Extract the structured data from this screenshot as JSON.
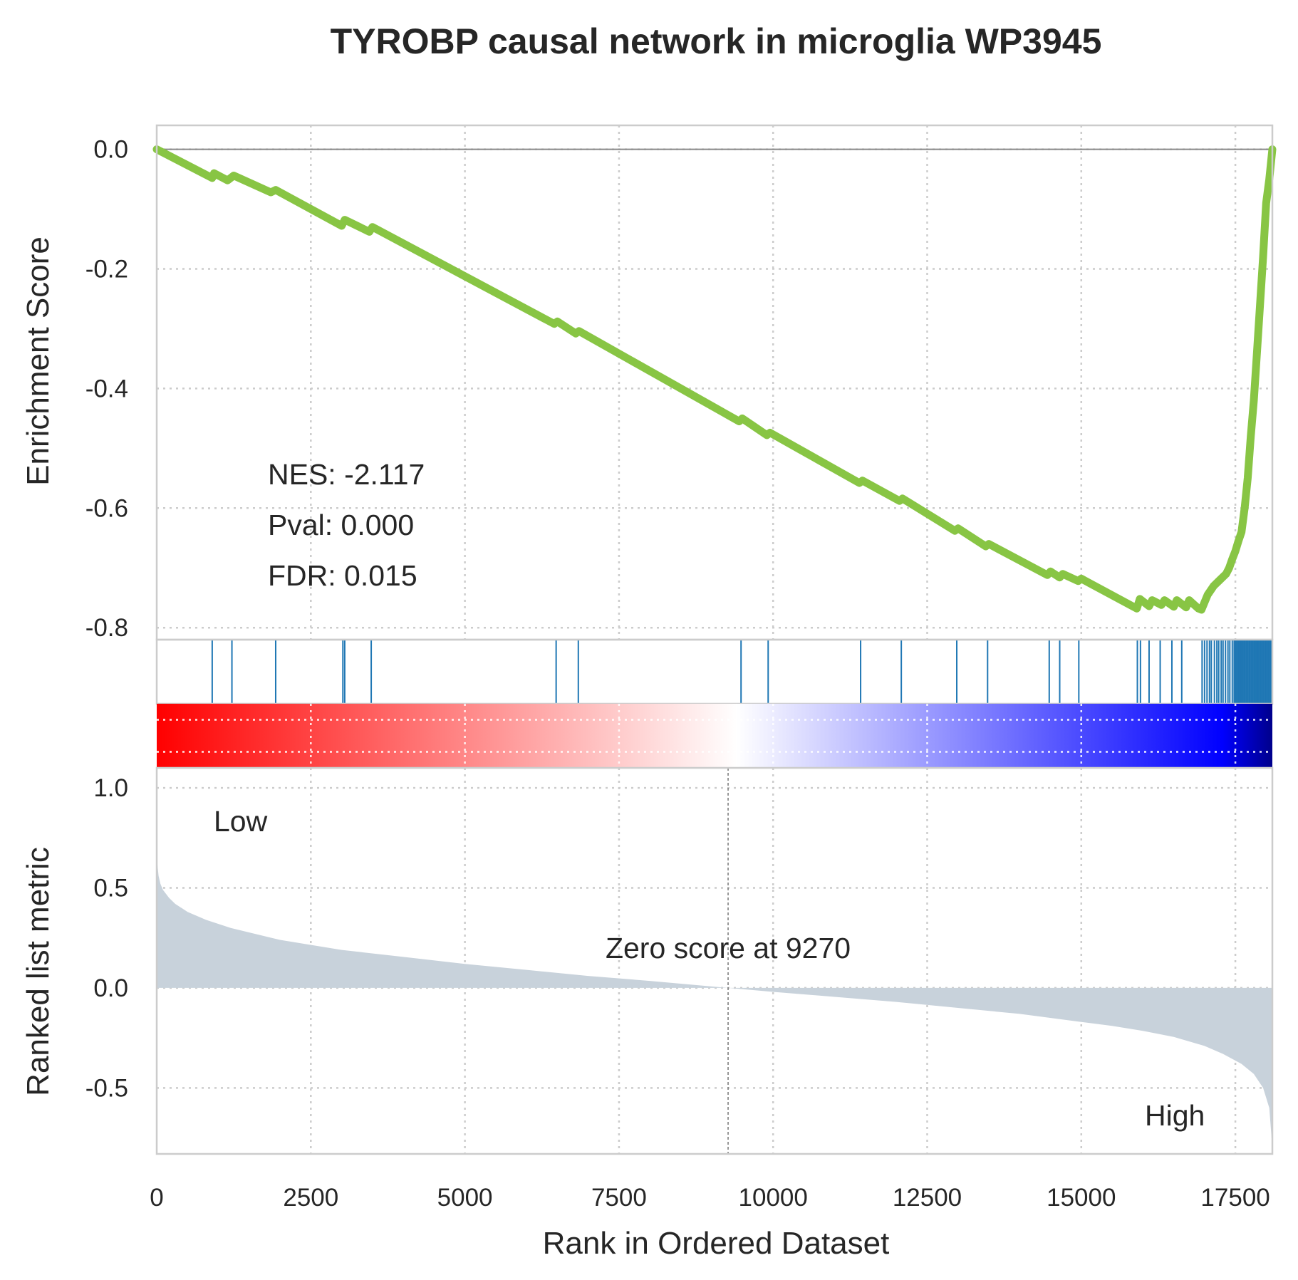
{
  "chart_data": {
    "type": "line",
    "title": "TYROBP causal network in microglia WP3945",
    "xlabel": "Rank in Ordered Dataset",
    "xlim": [
      0,
      18100
    ],
    "x_ticks": [
      0,
      2500,
      5000,
      7500,
      10000,
      12500,
      15000,
      17500
    ],
    "grid": true,
    "enrichment_panel": {
      "ylabel": "Enrichment Score",
      "ylim": [
        -0.82,
        0.04
      ],
      "y_ticks": [
        0.0,
        -0.2,
        -0.4,
        -0.6,
        -0.8
      ],
      "y_tick_labels": [
        "0.0",
        "-0.2",
        "-0.4",
        "-0.6",
        "-0.8"
      ],
      "series": [
        {
          "color": "#88c544",
          "x": [
            0,
            900,
            930,
            1150,
            1250,
            1850,
            1930,
            3000,
            3050,
            3450,
            3500,
            6450,
            6500,
            6800,
            6850,
            9450,
            9500,
            9900,
            9950,
            11400,
            11450,
            12050,
            12100,
            12950,
            13000,
            13450,
            13500,
            14450,
            14500,
            14650,
            14700,
            14950,
            15000,
            15900,
            15950,
            16100,
            16150,
            16300,
            16350,
            16500,
            16550,
            16700,
            16750,
            16900,
            16950,
            17050,
            17150,
            17250,
            17350,
            17400,
            17450,
            17500,
            17550,
            17600,
            17650,
            17700,
            17750,
            17800,
            17850,
            17900,
            17950,
            18000,
            18050,
            18100
          ],
          "y": [
            0.0,
            -0.048,
            -0.04,
            -0.052,
            -0.044,
            -0.072,
            -0.068,
            -0.128,
            -0.118,
            -0.138,
            -0.13,
            -0.292,
            -0.288,
            -0.308,
            -0.304,
            -0.455,
            -0.45,
            -0.478,
            -0.474,
            -0.558,
            -0.554,
            -0.588,
            -0.584,
            -0.638,
            -0.634,
            -0.664,
            -0.66,
            -0.712,
            -0.706,
            -0.716,
            -0.71,
            -0.722,
            -0.718,
            -0.768,
            -0.752,
            -0.764,
            -0.754,
            -0.762,
            -0.754,
            -0.765,
            -0.754,
            -0.766,
            -0.754,
            -0.768,
            -0.77,
            -0.745,
            -0.73,
            -0.72,
            -0.71,
            -0.7,
            -0.685,
            -0.672,
            -0.655,
            -0.64,
            -0.6,
            -0.55,
            -0.48,
            -0.42,
            -0.34,
            -0.26,
            -0.18,
            -0.09,
            -0.05,
            0.0
          ]
        }
      ],
      "annotations": [
        "NES: -2.117",
        "Pval: 0.000",
        "FDR: 0.015"
      ]
    },
    "hits": {
      "color": "#1f77b4",
      "positions": [
        900,
        1220,
        1930,
        3020,
        3050,
        3480,
        6480,
        6840,
        9480,
        9920,
        11420,
        12080,
        12980,
        13480,
        14480,
        14650,
        14960,
        15910,
        15960,
        16100,
        16280,
        16470,
        16630,
        16960,
        17000,
        17040,
        17080,
        17110,
        17160,
        17200,
        17230,
        17270,
        17300,
        17340,
        17380,
        17410,
        17450,
        17480,
        17500,
        17520,
        17540,
        17560,
        17580,
        17600,
        17620,
        17640,
        17660,
        17680,
        17700,
        17720,
        17740,
        17760,
        17780,
        17800,
        17820,
        17840,
        17860,
        17880,
        17900,
        17920,
        17940,
        17960,
        17980,
        18000,
        18020,
        18040,
        18060,
        18080
      ]
    },
    "heatmap_bar": {
      "colormap": "bwr",
      "stops": [
        "#ff0000",
        "#ffffff",
        "#0000ff",
        "#00008b"
      ]
    },
    "rank_panel": {
      "ylabel": "Ranked list metric",
      "ylim": [
        -0.83,
        1.1
      ],
      "y_ticks": [
        1.0,
        0.5,
        0.0,
        -0.5
      ],
      "y_tick_labels": [
        "1.0",
        "0.5",
        "0.0",
        "-0.5"
      ],
      "fill_color": "#c8d2db",
      "x": [
        0,
        10,
        30,
        60,
        100,
        200,
        300,
        500,
        800,
        1200,
        2000,
        3000,
        4000,
        5000,
        6000,
        7000,
        8000,
        9270,
        10000,
        11000,
        12000,
        13000,
        14000,
        15000,
        15500,
        16000,
        16500,
        17000,
        17300,
        17600,
        17800,
        17950,
        18050,
        18100
      ],
      "values": [
        0.76,
        0.62,
        0.56,
        0.52,
        0.49,
        0.45,
        0.42,
        0.38,
        0.34,
        0.3,
        0.24,
        0.19,
        0.155,
        0.12,
        0.09,
        0.06,
        0.035,
        0.0,
        -0.02,
        -0.045,
        -0.07,
        -0.1,
        -0.13,
        -0.17,
        -0.19,
        -0.215,
        -0.245,
        -0.29,
        -0.33,
        -0.38,
        -0.43,
        -0.5,
        -0.6,
        -0.8
      ],
      "zero_cross": 9270,
      "zero_label": "Zero score at 9270",
      "low_label": "Low",
      "high_label": "High",
      "low_color": "#ff0000",
      "high_color": "#0000ff"
    }
  }
}
